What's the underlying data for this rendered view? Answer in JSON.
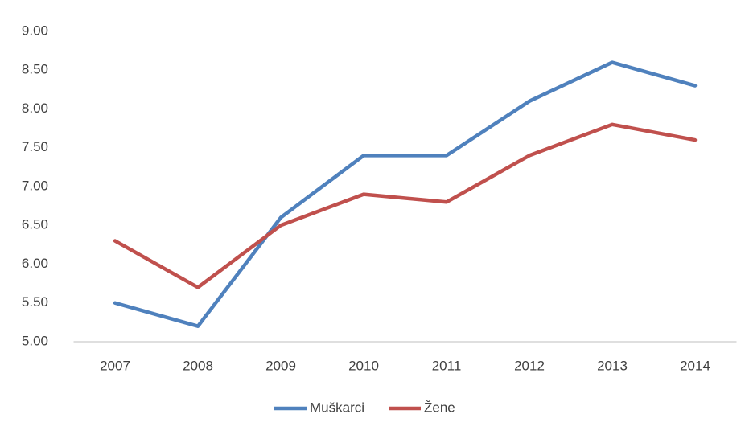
{
  "chart_data": {
    "type": "line",
    "categories": [
      "2007",
      "2008",
      "2009",
      "2010",
      "2011",
      "2012",
      "2013",
      "2014"
    ],
    "series": [
      {
        "name": "Muškarci",
        "color": "#4f81bd",
        "values": [
          5.5,
          5.2,
          6.6,
          7.4,
          7.4,
          8.1,
          8.6,
          8.3
        ]
      },
      {
        "name": "Žene",
        "color": "#c0504d",
        "values": [
          6.3,
          5.7,
          6.5,
          6.9,
          6.8,
          7.4,
          7.8,
          7.6
        ]
      }
    ],
    "ylim": [
      5,
      9
    ],
    "yticks": [
      {
        "value": 5,
        "label": "5.00"
      },
      {
        "value": 5.5,
        "label": "5.50"
      },
      {
        "value": 6,
        "label": "6.00"
      },
      {
        "value": 6.5,
        "label": "6.50"
      },
      {
        "value": 7,
        "label": "7.00"
      },
      {
        "value": 7.5,
        "label": "7.50"
      },
      {
        "value": 8,
        "label": "8.00"
      },
      {
        "value": 8.5,
        "label": "8.50"
      },
      {
        "value": 9,
        "label": "9.00"
      }
    ],
    "grid": false,
    "legend": "bottom"
  }
}
